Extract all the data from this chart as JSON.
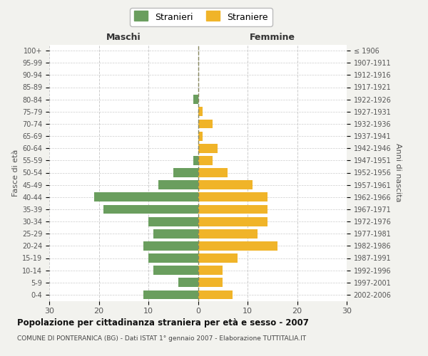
{
  "age_groups": [
    "0-4",
    "5-9",
    "10-14",
    "15-19",
    "20-24",
    "25-29",
    "30-34",
    "35-39",
    "40-44",
    "45-49",
    "50-54",
    "55-59",
    "60-64",
    "65-69",
    "70-74",
    "75-79",
    "80-84",
    "85-89",
    "90-94",
    "95-99",
    "100+"
  ],
  "birth_years": [
    "2002-2006",
    "1997-2001",
    "1992-1996",
    "1987-1991",
    "1982-1986",
    "1977-1981",
    "1972-1976",
    "1967-1971",
    "1962-1966",
    "1957-1961",
    "1952-1956",
    "1947-1951",
    "1942-1946",
    "1937-1941",
    "1932-1936",
    "1927-1931",
    "1922-1926",
    "1917-1921",
    "1912-1916",
    "1907-1911",
    "≤ 1906"
  ],
  "males": [
    11,
    4,
    9,
    10,
    11,
    9,
    10,
    19,
    21,
    8,
    5,
    1,
    0,
    0,
    0,
    0,
    1,
    0,
    0,
    0,
    0
  ],
  "females": [
    7,
    5,
    5,
    8,
    16,
    12,
    14,
    14,
    14,
    11,
    6,
    3,
    4,
    1,
    3,
    1,
    0,
    0,
    0,
    0,
    0
  ],
  "male_color": "#6a9e5e",
  "female_color": "#f0b429",
  "male_label": "Stranieri",
  "female_label": "Straniere",
  "xlim": 30,
  "xlabel_left": "Maschi",
  "xlabel_right": "Femmine",
  "ylabel_left": "Fasce di età",
  "ylabel_right": "Anni di nascita",
  "title": "Popolazione per cittadinanza straniera per età e sesso - 2007",
  "subtitle": "COMUNE DI PONTERANICA (BG) - Dati ISTAT 1° gennaio 2007 - Elaborazione TUTTITALIA.IT",
  "bg_color": "#f2f2ee",
  "plot_bg": "#ffffff",
  "grid_color": "#cccccc"
}
